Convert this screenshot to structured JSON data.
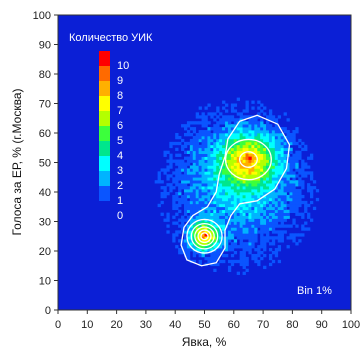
{
  "chart_data": {
    "type": "heatmap",
    "xlabel": "Явка, %",
    "ylabel": "Голоса за ЕР, % (г.Москва)",
    "xlim": [
      0,
      100
    ],
    "ylim": [
      0,
      100
    ],
    "x_ticks": [
      0,
      10,
      20,
      30,
      40,
      50,
      60,
      70,
      80,
      90,
      100
    ],
    "y_ticks": [
      0,
      10,
      20,
      30,
      40,
      50,
      60,
      70,
      80,
      90,
      100
    ],
    "bin_label": "Bin 1%",
    "background_color": "#0b1fd6",
    "colorbar": {
      "title": "Количество УИК",
      "labels": [
        "10",
        "9",
        "8",
        "7",
        "6",
        "5",
        "4",
        "3",
        "2",
        "1",
        "0"
      ],
      "colors": [
        "#ff0000",
        "#ff6a00",
        "#ffb000",
        "#ffff00",
        "#b4ff00",
        "#3cff3c",
        "#00e68c",
        "#00ffff",
        "#00b4ff",
        "#0a55ff",
        "#0b1fd6"
      ]
    },
    "clusters": [
      {
        "center": [
          50,
          25
        ],
        "peak_count": 10
      },
      {
        "center": [
          65,
          51
        ],
        "peak_count": 10
      }
    ],
    "contour_color": "#ffffff"
  }
}
